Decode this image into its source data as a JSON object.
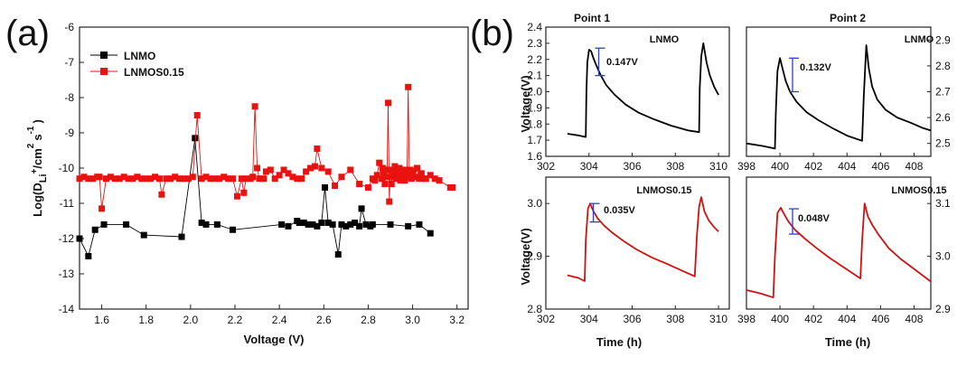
{
  "panel_labels": {
    "a": "(a)",
    "b": "(b)"
  },
  "colors": {
    "lnmo": "#000000",
    "lnmos": "#e8130f",
    "bracket": "#2b3fd6",
    "traceB": "#d21010"
  },
  "chart_data": [
    {
      "id": "a",
      "type": "scatter",
      "title": "",
      "xlabel": "Voltage (V)",
      "ylabel": "Log(D_Li+/cm^2 s^-1)",
      "ylabel_parts": {
        "main": "Log(D",
        "sub": "Li",
        "sup_plus": "+",
        "unit": "/cm",
        "sup2": "2",
        "s": "s",
        "supm1": "-1",
        "close": ")"
      },
      "xlim": [
        1.5,
        3.25
      ],
      "ylim": [
        -14,
        -6
      ],
      "xticks": [
        "1.6",
        "1.8",
        "2.0",
        "2.2",
        "2.4",
        "2.6",
        "2.8",
        "3.0",
        "3.2"
      ],
      "yticks": [
        "-14",
        "-13",
        "-12",
        "-11",
        "-10",
        "-9",
        "-8",
        "-7",
        "-6"
      ],
      "legend_position": "top-left",
      "series": [
        {
          "name": "LNMO",
          "color": "#000000",
          "marker": "square",
          "x": [
            1.5,
            1.54,
            1.57,
            1.61,
            1.71,
            1.79,
            1.96,
            2.02,
            2.05,
            2.07,
            2.12,
            2.19,
            2.41,
            2.44,
            2.48,
            2.49,
            2.51,
            2.53,
            2.55,
            2.57,
            2.59,
            2.605,
            2.62,
            2.64,
            2.665,
            2.68,
            2.7,
            2.72,
            2.74,
            2.76,
            2.77,
            2.79,
            2.81,
            2.82,
            2.9,
            2.98,
            3.03,
            3.08
          ],
          "y": [
            -12.0,
            -12.5,
            -11.75,
            -11.6,
            -11.6,
            -11.9,
            -11.95,
            -9.15,
            -11.55,
            -11.6,
            -11.6,
            -11.75,
            -11.6,
            -11.65,
            -11.5,
            -11.55,
            -11.55,
            -11.6,
            -11.6,
            -11.65,
            -11.55,
            -10.55,
            -11.55,
            -11.6,
            -12.45,
            -11.6,
            -11.65,
            -11.6,
            -11.55,
            -11.65,
            -11.15,
            -11.6,
            -11.65,
            -11.6,
            -11.6,
            -11.65,
            -11.6,
            -11.85
          ]
        },
        {
          "name": "LNMOS0.15",
          "color": "#e8130f",
          "marker": "square",
          "x": [
            1.5,
            1.52,
            1.54,
            1.56,
            1.58,
            1.59,
            1.6,
            1.62,
            1.64,
            1.66,
            1.68,
            1.7,
            1.72,
            1.74,
            1.76,
            1.78,
            1.8,
            1.82,
            1.84,
            1.86,
            1.87,
            1.89,
            1.91,
            1.93,
            1.95,
            1.97,
            1.99,
            2.01,
            2.03,
            2.05,
            2.07,
            2.09,
            2.11,
            2.13,
            2.15,
            2.17,
            2.19,
            2.21,
            2.23,
            2.24,
            2.25,
            2.27,
            2.28,
            2.29,
            2.3,
            2.31,
            2.33,
            2.34,
            2.36,
            2.38,
            2.4,
            2.42,
            2.44,
            2.46,
            2.48,
            2.5,
            2.52,
            2.54,
            2.56,
            2.57,
            2.59,
            2.62,
            2.65,
            2.68,
            2.72,
            2.76,
            2.8,
            2.82,
            2.83,
            2.84,
            2.85,
            2.86,
            2.865,
            2.87,
            2.875,
            2.88,
            2.885,
            2.89,
            2.895,
            2.9,
            2.905,
            2.91,
            2.915,
            2.92,
            2.925,
            2.93,
            2.935,
            2.94,
            2.945,
            2.95,
            2.955,
            2.96,
            2.965,
            2.97,
            2.975,
            2.98,
            2.985,
            2.99,
            2.995,
            3.0,
            3.01,
            3.02,
            3.03,
            3.04,
            3.05,
            3.06,
            3.08,
            3.1,
            3.12,
            3.17,
            3.18
          ],
          "y": [
            -10.3,
            -10.25,
            -10.3,
            -10.3,
            -10.25,
            -10.25,
            -11.15,
            -10.3,
            -10.25,
            -10.3,
            -10.3,
            -10.25,
            -10.3,
            -10.3,
            -10.25,
            -10.3,
            -10.3,
            -10.3,
            -10.25,
            -10.3,
            -10.75,
            -10.3,
            -10.3,
            -10.25,
            -10.3,
            -10.3,
            -10.3,
            -10.25,
            -8.5,
            -10.3,
            -10.25,
            -10.3,
            -10.3,
            -10.3,
            -10.25,
            -10.3,
            -10.3,
            -10.8,
            -10.3,
            -10.7,
            -10.3,
            -10.3,
            -10.25,
            -8.25,
            -10.0,
            -10.3,
            -10.3,
            -10.1,
            -10.05,
            -10.3,
            -10.2,
            -10.05,
            -10.15,
            -10.25,
            -10.3,
            -10.3,
            -10.1,
            -10.0,
            -9.95,
            -9.45,
            -10.0,
            -10.1,
            -10.5,
            -10.25,
            -10.05,
            -10.45,
            -10.55,
            -10.3,
            -10.35,
            -10.2,
            -9.85,
            -10.3,
            -10.0,
            -10.15,
            -10.45,
            -10.05,
            -10.25,
            -8.15,
            -10.95,
            -10.05,
            -10.45,
            -10.1,
            -10.25,
            -9.95,
            -10.3,
            -10.05,
            -10.2,
            -10.0,
            -10.35,
            -10.05,
            -10.2,
            -10.1,
            -10.35,
            -10.05,
            -10.25,
            -7.7,
            -10.2,
            -10.05,
            -10.3,
            -10.1,
            -10.25,
            -10.0,
            -10.3,
            -10.15,
            -10.3,
            -10.3,
            -10.2,
            -10.3,
            -10.35,
            -10.55,
            -10.55
          ]
        }
      ]
    },
    {
      "id": "b1",
      "type": "line",
      "title": "Point 1",
      "xlabel": "",
      "ylabel": "Voltage(V)",
      "label": "LNMO",
      "annotation": "0.147V",
      "xlim": [
        302,
        310.5
      ],
      "ylim": [
        1.6,
        2.4
      ],
      "xticks": [],
      "yticks": [
        "1.6",
        "1.7",
        "1.8",
        "1.9",
        "2.0",
        "2.1",
        "2.2",
        "2.3",
        "2.4"
      ],
      "x": [
        303.0,
        303.5,
        303.85,
        303.88,
        303.92,
        304.0,
        304.1,
        304.2,
        304.35,
        304.55,
        304.8,
        305.2,
        305.7,
        306.3,
        307.0,
        307.8,
        308.6,
        309.1,
        309.13,
        309.2,
        309.3,
        309.45,
        309.6,
        309.8,
        310.0
      ],
      "y": [
        1.74,
        1.73,
        1.72,
        2.0,
        2.18,
        2.26,
        2.25,
        2.21,
        2.16,
        2.1,
        2.04,
        1.98,
        1.92,
        1.87,
        1.83,
        1.79,
        1.76,
        1.75,
        2.02,
        2.22,
        2.3,
        2.18,
        2.1,
        2.03,
        1.98
      ]
    },
    {
      "id": "b2",
      "type": "line",
      "title": "Point 2",
      "xlabel": "",
      "ylabel": "",
      "label": "LNMO",
      "annotation": "0.132V",
      "xlim": [
        398,
        409
      ],
      "ylim": [
        2.45,
        2.95
      ],
      "xticks": [],
      "yticks": [
        "2.5",
        "2.6",
        "2.7",
        "2.8",
        "2.9"
      ],
      "x": [
        398.0,
        399.0,
        399.7,
        399.75,
        399.85,
        400.0,
        400.15,
        400.35,
        400.6,
        401.0,
        401.6,
        402.3,
        403.1,
        404.0,
        404.9,
        405.0,
        405.15,
        405.3,
        405.5,
        405.8,
        406.3,
        407.0,
        407.8,
        408.5,
        409.0
      ],
      "y": [
        2.5,
        2.49,
        2.48,
        2.62,
        2.78,
        2.83,
        2.79,
        2.74,
        2.7,
        2.66,
        2.62,
        2.59,
        2.56,
        2.53,
        2.51,
        2.68,
        2.88,
        2.79,
        2.72,
        2.67,
        2.63,
        2.6,
        2.58,
        2.56,
        2.55
      ]
    },
    {
      "id": "b3",
      "type": "line",
      "title": "",
      "xlabel": "Time (h)",
      "ylabel": "Voltage(V)",
      "label": "LNMOS0.15",
      "annotation": "0.035V",
      "xlim": [
        302,
        310.5
      ],
      "ylim": [
        2.8,
        3.05
      ],
      "xticks": [
        "302",
        "304",
        "306",
        "308",
        "310"
      ],
      "yticks": [
        "2.8",
        "2.9",
        "3.0"
      ],
      "x": [
        303.0,
        303.5,
        303.8,
        303.85,
        303.95,
        304.05,
        304.2,
        304.4,
        304.7,
        305.1,
        305.6,
        306.2,
        306.9,
        307.6,
        308.3,
        308.9,
        309.0,
        309.1,
        309.2,
        309.35,
        309.55,
        309.8,
        310.0
      ],
      "y": [
        2.864,
        2.859,
        2.853,
        2.93,
        2.99,
        3.0,
        2.986,
        2.972,
        2.958,
        2.944,
        2.929,
        2.913,
        2.898,
        2.886,
        2.873,
        2.862,
        2.94,
        2.994,
        3.012,
        2.985,
        2.968,
        2.955,
        2.947
      ]
    },
    {
      "id": "b4",
      "type": "line",
      "title": "",
      "xlabel": "Time (h)",
      "ylabel": "",
      "label": "LNMOS0.15",
      "annotation": "0.048V",
      "xlim": [
        398,
        409
      ],
      "ylim": [
        2.9,
        3.15
      ],
      "xticks": [
        "398",
        "400",
        "402",
        "404",
        "406",
        "408"
      ],
      "yticks": [
        "2.9",
        "3.0",
        "3.1"
      ],
      "x": [
        398.0,
        398.8,
        399.6,
        399.7,
        399.85,
        400.05,
        400.25,
        400.5,
        400.9,
        401.5,
        402.2,
        403.0,
        403.9,
        404.8,
        404.9,
        405.05,
        405.25,
        405.5,
        405.9,
        406.5,
        407.2,
        408.0,
        409.0
      ],
      "y": [
        2.936,
        2.93,
        2.922,
        3.0,
        3.082,
        3.092,
        3.08,
        3.066,
        3.05,
        3.033,
        3.015,
        2.996,
        2.977,
        2.958,
        3.03,
        3.1,
        3.075,
        3.06,
        3.04,
        3.015,
        2.995,
        2.976,
        2.952
      ]
    }
  ]
}
